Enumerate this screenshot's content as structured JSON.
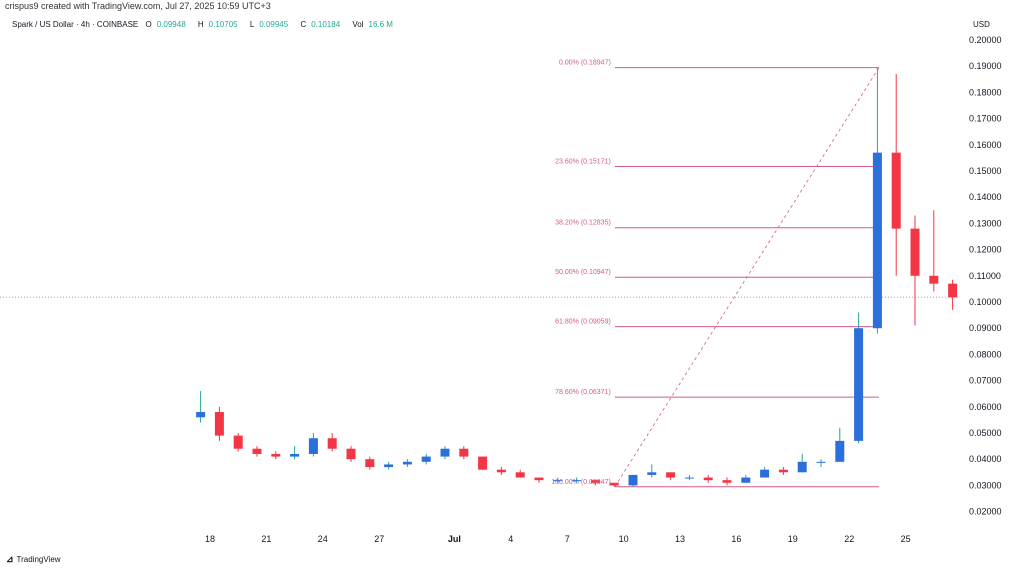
{
  "credit": "crispus9 created with TradingView.com, Jul 27, 2025 10:59 UTC+3",
  "legend": {
    "symbol": "Spark / US Dollar · 4h · COINBASE",
    "o_label": "O",
    "o": "0.09948",
    "h_label": "H",
    "h": "0.10705",
    "l_label": "L",
    "l": "0.09945",
    "c_label": "C",
    "c": "0.10184",
    "vol_label": "Vol",
    "vol": "16.6 M"
  },
  "currency": "USD",
  "brand": "TradingView",
  "colors": {
    "up": "#2a6fdb",
    "up_wick": "#26a69a",
    "down": "#f23645",
    "fib": "#d45a8c"
  },
  "chart_data": {
    "type": "candlestick",
    "ylim": [
      0.015,
      0.205
    ],
    "y_ticks": [
      "0.20000",
      "0.19000",
      "0.18000",
      "0.17000",
      "0.16000",
      "0.15000",
      "0.14000",
      "0.13000",
      "0.12000",
      "0.11000",
      "0.10000",
      "0.09000",
      "0.08000",
      "0.07000",
      "0.06000",
      "0.05000",
      "0.04000",
      "0.03000",
      "0.02000"
    ],
    "x_ticks": [
      {
        "label": "18",
        "date": "2025-06-18"
      },
      {
        "label": "21",
        "date": "2025-06-21"
      },
      {
        "label": "24",
        "date": "2025-06-24"
      },
      {
        "label": "27",
        "date": "2025-06-27"
      },
      {
        "label": "Jul",
        "date": "2025-07-01"
      },
      {
        "label": "4",
        "date": "2025-07-04"
      },
      {
        "label": "7",
        "date": "2025-07-07"
      },
      {
        "label": "10",
        "date": "2025-07-10"
      },
      {
        "label": "13",
        "date": "2025-07-13"
      },
      {
        "label": "16",
        "date": "2025-07-16"
      },
      {
        "label": "19",
        "date": "2025-07-19"
      },
      {
        "label": "22",
        "date": "2025-07-22"
      },
      {
        "label": "25",
        "date": "2025-07-25"
      }
    ],
    "candles": [
      [
        "2025-06-17",
        0.056,
        0.066,
        0.054,
        0.058
      ],
      [
        "2025-06-18",
        0.058,
        0.06,
        0.047,
        0.049
      ],
      [
        "2025-06-19",
        0.049,
        0.05,
        0.043,
        0.044
      ],
      [
        "2025-06-20",
        0.044,
        0.045,
        0.041,
        0.042
      ],
      [
        "2025-06-21",
        0.042,
        0.043,
        0.04,
        0.041
      ],
      [
        "2025-06-22",
        0.041,
        0.045,
        0.04,
        0.042
      ],
      [
        "2025-06-23",
        0.042,
        0.05,
        0.041,
        0.048
      ],
      [
        "2025-06-24",
        0.048,
        0.05,
        0.043,
        0.044
      ],
      [
        "2025-06-25",
        0.044,
        0.045,
        0.039,
        0.04
      ],
      [
        "2025-06-26",
        0.04,
        0.041,
        0.036,
        0.037
      ],
      [
        "2025-06-27",
        0.037,
        0.039,
        0.036,
        0.038
      ],
      [
        "2025-06-28",
        0.038,
        0.04,
        0.037,
        0.039
      ],
      [
        "2025-06-29",
        0.039,
        0.042,
        0.038,
        0.041
      ],
      [
        "2025-06-30",
        0.041,
        0.045,
        0.04,
        0.044
      ],
      [
        "2025-07-01",
        0.044,
        0.045,
        0.04,
        0.041
      ],
      [
        "2025-07-02",
        0.041,
        0.041,
        0.036,
        0.036
      ],
      [
        "2025-07-03",
        0.036,
        0.037,
        0.034,
        0.035
      ],
      [
        "2025-07-04",
        0.035,
        0.036,
        0.033,
        0.033
      ],
      [
        "2025-07-05",
        0.033,
        0.033,
        0.031,
        0.032
      ],
      [
        "2025-07-06",
        0.032,
        0.033,
        0.031,
        0.032
      ],
      [
        "2025-07-07",
        0.032,
        0.033,
        0.031,
        0.032
      ],
      [
        "2025-07-08",
        0.032,
        0.032,
        0.03,
        0.031
      ],
      [
        "2025-07-09",
        0.031,
        0.031,
        0.0295,
        0.03
      ],
      [
        "2025-07-10",
        0.03,
        0.034,
        0.0295,
        0.034
      ],
      [
        "2025-07-11",
        0.034,
        0.038,
        0.033,
        0.035
      ],
      [
        "2025-07-12",
        0.035,
        0.035,
        0.032,
        0.033
      ],
      [
        "2025-07-13",
        0.033,
        0.034,
        0.032,
        0.033
      ],
      [
        "2025-07-14",
        0.033,
        0.034,
        0.031,
        0.032
      ],
      [
        "2025-07-15",
        0.032,
        0.033,
        0.03,
        0.031
      ],
      [
        "2025-07-16",
        0.031,
        0.034,
        0.031,
        0.033
      ],
      [
        "2025-07-17",
        0.033,
        0.037,
        0.033,
        0.036
      ],
      [
        "2025-07-18",
        0.036,
        0.037,
        0.034,
        0.035
      ],
      [
        "2025-07-19",
        0.035,
        0.042,
        0.035,
        0.039
      ],
      [
        "2025-07-20",
        0.039,
        0.04,
        0.037,
        0.039
      ],
      [
        "2025-07-21",
        0.039,
        0.052,
        0.039,
        0.047
      ],
      [
        "2025-07-22",
        0.047,
        0.096,
        0.046,
        0.09
      ],
      [
        "2025-07-23",
        0.09,
        0.1895,
        0.088,
        0.157
      ],
      [
        "2025-07-24",
        0.157,
        0.187,
        0.11,
        0.128
      ],
      [
        "2025-07-25",
        0.128,
        0.133,
        0.091,
        0.11
      ],
      [
        "2025-07-26",
        0.11,
        0.135,
        0.104,
        0.107
      ],
      [
        "2025-07-27",
        0.107,
        0.1085,
        0.097,
        0.1018
      ]
    ],
    "last_price": 0.10184,
    "fib_levels": [
      {
        "label": "0.00% (0.18947)",
        "value": 0.18947
      },
      {
        "label": "23.60% (0.15171)",
        "value": 0.15171
      },
      {
        "label": "38.20% (0.12835)",
        "value": 0.12835
      },
      {
        "label": "50.00% (0.10947)",
        "value": 0.10947
      },
      {
        "label": "61.80% (0.09059)",
        "value": 0.09059
      },
      {
        "label": "78.60% (0.06371)",
        "value": 0.06371
      },
      {
        "label": "100.00% (0.02947)",
        "value": 0.02947
      }
    ],
    "fib_range": {
      "start_date": "2025-07-09",
      "end_date": "2025-07-23"
    }
  }
}
